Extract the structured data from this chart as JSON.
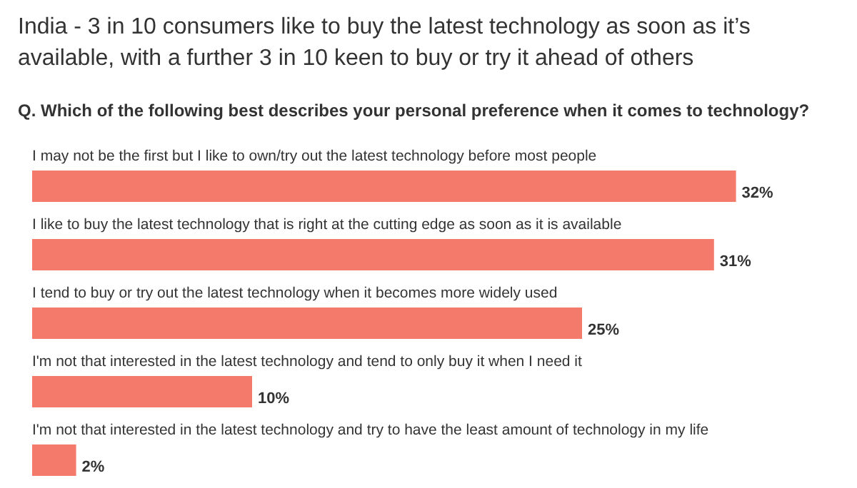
{
  "chart_data": {
    "type": "bar",
    "orientation": "horizontal",
    "title": "India - 3 in 10 consumers like to buy the latest technology as soon as it’s available, with a further 3 in 10 keen to buy or try it ahead of others",
    "subtitle": "Q. Which of the following best describes your personal preference when it comes to technology?",
    "categories": [
      "I may not be the first but I like to own/try out the latest technology before most people",
      "I like to buy the latest technology that is right at the cutting edge as soon as it is available",
      "I tend to buy or try out the latest technology when it becomes more widely used",
      "I'm not that interested in the latest technology and tend to only buy it when I need it",
      "I'm not that interested in the latest technology and try to have the least amount of technology in my life"
    ],
    "values": [
      32,
      31,
      25,
      10,
      2
    ],
    "value_labels": [
      "32%",
      "31%",
      "25%",
      "10%",
      "2%"
    ],
    "color": "#f47a6b"
  }
}
